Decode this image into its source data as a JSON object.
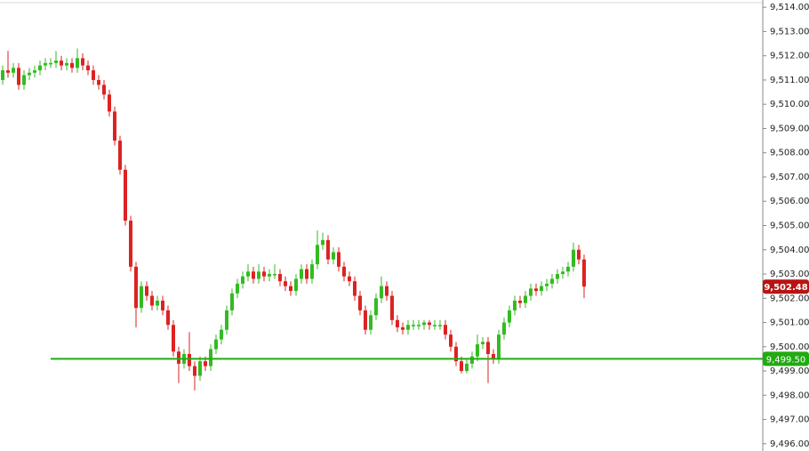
{
  "chart_data": {
    "type": "candlestick",
    "open": [
      9511.0,
      9511.4,
      9511.3,
      9511.5,
      9510.8,
      9511.2,
      9511.3,
      9511.4,
      9511.6,
      9511.7,
      9511.7,
      9511.8,
      9511.6,
      9511.7,
      9511.5,
      9511.9,
      9511.6,
      9511.4,
      9511.0,
      9510.8,
      9510.4,
      9509.7,
      9508.5,
      9507.3,
      9505.2,
      9503.3,
      9501.6,
      9502.5,
      9502.1,
      9501.7,
      9501.9,
      9501.5,
      9500.9,
      9499.8,
      9499.3,
      9499.7,
      9499.2,
      9498.8,
      9499.4,
      9499.2,
      9499.9,
      9500.3,
      9500.7,
      9501.5,
      9502.2,
      9502.6,
      9502.9,
      9503.1,
      9502.8,
      9503.1,
      9502.9,
      9503.0,
      9503.0,
      9502.7,
      9502.5,
      9502.3,
      9502.8,
      9503.2,
      9502.8,
      9503.4,
      9504.2,
      9504.4,
      9503.6,
      9503.9,
      9503.3,
      9502.9,
      9502.7,
      9502.1,
      9501.5,
      9500.7,
      9501.3,
      9502.0,
      9502.5,
      9502.1,
      9501.1,
      9500.8,
      9500.7,
      9500.9,
      9500.9,
      9500.9,
      9501.0,
      9500.9,
      9500.9,
      9500.9,
      9500.5,
      9500.0,
      9499.4,
      9499.0,
      9499.3,
      9499.6,
      9500.1,
      9500.2,
      9499.7,
      9499.5,
      9500.5,
      9501.0,
      9501.5,
      9501.9,
      9501.8,
      9502.1,
      9502.4,
      9502.3,
      9502.5,
      9502.6,
      9502.8,
      9503.0,
      9503.1,
      9503.3,
      9504.0,
      9503.6
    ],
    "high": [
      9511.6,
      9512.2,
      9511.7,
      9511.7,
      9511.4,
      9511.5,
      9511.6,
      9511.8,
      9511.9,
      9511.9,
      9512.2,
      9512.0,
      9511.9,
      9511.9,
      9512.3,
      9512.1,
      9511.8,
      9511.6,
      9511.2,
      9511.0,
      9510.6,
      9509.9,
      9508.7,
      9507.5,
      9505.4,
      9503.5,
      9502.7,
      9502.7,
      9502.3,
      9502.1,
      9502.1,
      9501.7,
      9501.1,
      9500.0,
      9499.9,
      9500.6,
      9499.4,
      9499.6,
      9499.6,
      9500.1,
      9500.5,
      9500.9,
      9501.7,
      9502.4,
      9502.8,
      9503.1,
      9503.4,
      9503.3,
      9503.4,
      9503.3,
      9503.2,
      9503.4,
      9503.2,
      9502.9,
      9502.7,
      9503.0,
      9503.4,
      9503.4,
      9503.6,
      9504.8,
      9504.7,
      9504.6,
      9504.1,
      9504.1,
      9503.5,
      9503.1,
      9502.9,
      9502.3,
      9501.7,
      9501.5,
      9502.2,
      9502.9,
      9502.7,
      9502.3,
      9501.3,
      9501.0,
      9501.1,
      9501.1,
      9501.1,
      9501.1,
      9501.1,
      9501.1,
      9501.1,
      9501.1,
      9500.7,
      9500.2,
      9499.6,
      9499.5,
      9499.8,
      9500.5,
      9500.4,
      9500.4,
      9499.9,
      9500.7,
      9501.2,
      9501.7,
      9502.1,
      9502.1,
      9502.3,
      9502.6,
      9502.6,
      9502.7,
      9502.8,
      9503.0,
      9503.2,
      9503.3,
      9503.5,
      9504.3,
      9504.2,
      9503.8
    ],
    "low": [
      9510.8,
      9511.1,
      9511.1,
      9510.6,
      9510.6,
      9511.0,
      9511.1,
      9511.2,
      9511.4,
      9511.5,
      9511.5,
      9511.4,
      9511.4,
      9511.3,
      9511.3,
      9511.4,
      9511.2,
      9510.8,
      9510.6,
      9510.2,
      9509.5,
      9508.3,
      9507.1,
      9505.0,
      9503.1,
      9500.8,
      9501.4,
      9501.9,
      9501.5,
      9501.5,
      9501.3,
      9500.7,
      9499.6,
      9498.5,
      9499.1,
      9499.0,
      9498.2,
      9498.6,
      9499.0,
      9499.0,
      9499.7,
      9500.1,
      9500.5,
      9501.3,
      9502.0,
      9502.4,
      9502.7,
      9502.6,
      9502.6,
      9502.7,
      9502.7,
      9502.8,
      9502.5,
      9502.3,
      9502.1,
      9502.1,
      9502.6,
      9502.6,
      9502.6,
      9503.2,
      9504.0,
      9503.4,
      9503.4,
      9503.1,
      9502.7,
      9502.5,
      9501.9,
      9501.3,
      9500.5,
      9500.5,
      9501.1,
      9501.8,
      9501.9,
      9500.9,
      9500.6,
      9500.5,
      9500.5,
      9500.7,
      9500.7,
      9500.7,
      9500.7,
      9500.7,
      9500.7,
      9500.3,
      9499.8,
      9499.2,
      9498.9,
      9498.9,
      9499.1,
      9499.4,
      9499.9,
      9498.5,
      9499.3,
      9499.3,
      9500.3,
      9500.8,
      9501.3,
      9501.6,
      9501.6,
      9501.9,
      9502.1,
      9502.1,
      9502.3,
      9502.4,
      9502.6,
      9502.8,
      9502.9,
      9503.1,
      9503.4,
      9502.0
    ],
    "close": [
      9511.4,
      9511.3,
      9511.5,
      9510.8,
      9511.2,
      9511.3,
      9511.4,
      9511.6,
      9511.7,
      9511.7,
      9511.8,
      9511.6,
      9511.7,
      9511.5,
      9511.9,
      9511.6,
      9511.4,
      9511.0,
      9510.8,
      9510.4,
      9509.7,
      9508.5,
      9507.3,
      9505.2,
      9503.3,
      9501.6,
      9502.5,
      9502.1,
      9501.7,
      9501.9,
      9501.5,
      9500.9,
      9499.8,
      9499.3,
      9499.7,
      9499.2,
      9498.8,
      9499.4,
      9499.2,
      9499.9,
      9500.3,
      9500.7,
      9501.5,
      9502.2,
      9502.6,
      9502.9,
      9503.1,
      9502.8,
      9503.1,
      9502.9,
      9503.0,
      9503.0,
      9502.7,
      9502.5,
      9502.3,
      9502.8,
      9503.2,
      9502.8,
      9503.4,
      9504.2,
      9504.4,
      9503.6,
      9503.9,
      9503.3,
      9502.9,
      9502.7,
      9502.1,
      9501.5,
      9500.7,
      9501.3,
      9502.0,
      9502.5,
      9502.1,
      9501.1,
      9500.8,
      9500.7,
      9500.9,
      9500.9,
      9500.9,
      9501.0,
      9500.9,
      9500.9,
      9500.9,
      9500.5,
      9500.0,
      9499.4,
      9499.0,
      9499.3,
      9499.6,
      9500.1,
      9500.2,
      9499.7,
      9499.5,
      9500.5,
      9501.0,
      9501.5,
      9501.9,
      9501.8,
      9502.1,
      9502.4,
      9502.3,
      9502.5,
      9502.6,
      9502.8,
      9503.0,
      9503.1,
      9503.3,
      9504.0,
      9503.6,
      9502.48
    ],
    "up_color": "#33bb22",
    "down_color": "#dd2222",
    "ylim": [
      9495.7,
      9514.3
    ],
    "yticks": [
      {
        "value": 9496,
        "label": "9,496.00"
      },
      {
        "value": 9497,
        "label": "9,497.00"
      },
      {
        "value": 9498,
        "label": "9,498.00"
      },
      {
        "value": 9499,
        "label": "9,499.00"
      },
      {
        "value": 9500,
        "label": "9,500.00"
      },
      {
        "value": 9501,
        "label": "9,501.00"
      },
      {
        "value": 9502,
        "label": "9,502.00"
      },
      {
        "value": 9503,
        "label": "9,503.00"
      },
      {
        "value": 9504,
        "label": "9,504.00"
      },
      {
        "value": 9505,
        "label": "9,505.00"
      },
      {
        "value": 9506,
        "label": "9,506.00"
      },
      {
        "value": 9507,
        "label": "9,507.00"
      },
      {
        "value": 9508,
        "label": "9,508.00"
      },
      {
        "value": 9509,
        "label": "9,509.00"
      },
      {
        "value": 9510,
        "label": "9,510.00"
      },
      {
        "value": 9511,
        "label": "9,511.00"
      },
      {
        "value": 9512,
        "label": "9,512.00"
      },
      {
        "value": 9513,
        "label": "9,513.00"
      },
      {
        "value": 9514,
        "label": "9,514.00"
      }
    ],
    "hline": {
      "value": 9499.5,
      "label": "9,499.50",
      "color": "#22aa11"
    },
    "last_price": {
      "value": 9502.48,
      "label": "9,502.48",
      "color": "#b81414"
    }
  }
}
